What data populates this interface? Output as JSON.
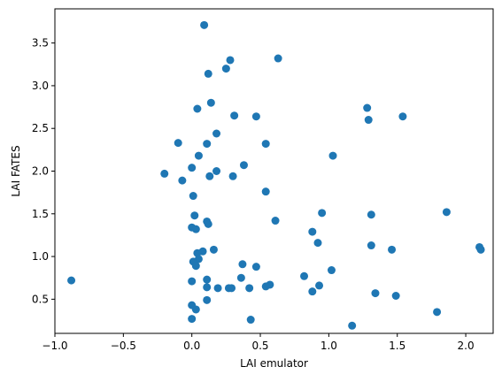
{
  "chart_data": {
    "type": "scatter",
    "title": "",
    "xlabel": "LAI emulator",
    "ylabel": "LAI FATES",
    "xlim": [
      -1.0,
      2.2
    ],
    "ylim": [
      0.1,
      3.9
    ],
    "xticks": [
      -1.0,
      -0.5,
      0.0,
      0.5,
      1.0,
      1.5,
      2.0
    ],
    "xtick_labels": [
      "−1.0",
      "−0.5",
      "0.0",
      "0.5",
      "1.0",
      "1.5",
      "2.0"
    ],
    "yticks": [
      0.5,
      1.0,
      1.5,
      2.0,
      2.5,
      3.0,
      3.5
    ],
    "ytick_labels": [
      "0.5",
      "1.0",
      "1.5",
      "2.0",
      "2.5",
      "3.0",
      "3.5"
    ],
    "grid": false,
    "marker_color": "#1f77b4",
    "points": [
      [
        0.09,
        3.71
      ],
      [
        0.28,
        3.3
      ],
      [
        0.63,
        3.32
      ],
      [
        0.25,
        3.2
      ],
      [
        0.12,
        3.14
      ],
      [
        0.14,
        2.8
      ],
      [
        0.04,
        2.73
      ],
      [
        0.31,
        2.65
      ],
      [
        0.47,
        2.64
      ],
      [
        1.28,
        2.74
      ],
      [
        1.29,
        2.6
      ],
      [
        1.54,
        2.64
      ],
      [
        0.18,
        2.44
      ],
      [
        -0.1,
        2.33
      ],
      [
        0.11,
        2.32
      ],
      [
        0.54,
        2.32
      ],
      [
        1.03,
        2.18
      ],
      [
        0.05,
        2.18
      ],
      [
        0.38,
        2.07
      ],
      [
        -0.2,
        1.97
      ],
      [
        0.0,
        2.04
      ],
      [
        0.18,
        2.0
      ],
      [
        0.13,
        1.94
      ],
      [
        0.3,
        1.94
      ],
      [
        -0.07,
        1.89
      ],
      [
        0.54,
        1.76
      ],
      [
        0.01,
        1.71
      ],
      [
        0.95,
        1.51
      ],
      [
        1.31,
        1.49
      ],
      [
        1.86,
        1.52
      ],
      [
        0.02,
        1.48
      ],
      [
        0.61,
        1.42
      ],
      [
        0.11,
        1.41
      ],
      [
        0.12,
        1.38
      ],
      [
        0.0,
        1.34
      ],
      [
        0.03,
        1.32
      ],
      [
        0.88,
        1.29
      ],
      [
        0.92,
        1.16
      ],
      [
        1.31,
        1.13
      ],
      [
        1.46,
        1.08
      ],
      [
        2.1,
        1.11
      ],
      [
        2.11,
        1.08
      ],
      [
        0.16,
        1.08
      ],
      [
        0.08,
        1.06
      ],
      [
        0.04,
        1.04
      ],
      [
        0.05,
        0.97
      ],
      [
        0.01,
        0.94
      ],
      [
        0.03,
        0.89
      ],
      [
        0.37,
        0.91
      ],
      [
        0.47,
        0.88
      ],
      [
        1.02,
        0.84
      ],
      [
        0.82,
        0.77
      ],
      [
        0.36,
        0.75
      ],
      [
        0.11,
        0.73
      ],
      [
        -0.88,
        0.72
      ],
      [
        0.0,
        0.71
      ],
      [
        0.57,
        0.67
      ],
      [
        0.54,
        0.65
      ],
      [
        0.11,
        0.64
      ],
      [
        0.19,
        0.63
      ],
      [
        0.27,
        0.63
      ],
      [
        0.29,
        0.63
      ],
      [
        0.42,
        0.63
      ],
      [
        0.93,
        0.66
      ],
      [
        0.88,
        0.59
      ],
      [
        1.34,
        0.57
      ],
      [
        1.49,
        0.54
      ],
      [
        0.11,
        0.49
      ],
      [
        0.0,
        0.43
      ],
      [
        0.03,
        0.38
      ],
      [
        1.79,
        0.35
      ],
      [
        0.0,
        0.27
      ],
      [
        0.43,
        0.26
      ],
      [
        1.17,
        0.19
      ]
    ]
  }
}
